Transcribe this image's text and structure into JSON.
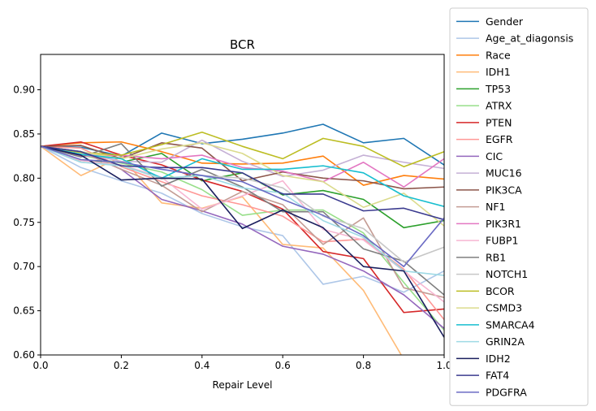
{
  "chart_data": {
    "type": "line",
    "title": "BCR",
    "xlabel": "Repair Level",
    "ylabel": "",
    "xlim": [
      0,
      1
    ],
    "ylim": [
      0.6,
      0.94
    ],
    "xticks": [
      0.0,
      0.2,
      0.4,
      0.6,
      0.8,
      1.0
    ],
    "xtick_labels": [
      "0.0",
      "0.2",
      "0.4",
      "0.6",
      "0.8",
      "1.0"
    ],
    "yticks": [
      0.6,
      0.65,
      0.7,
      0.75,
      0.8,
      0.85,
      0.9
    ],
    "ytick_labels": [
      "0.60",
      "0.65",
      "0.70",
      "0.75",
      "0.80",
      "0.85",
      "0.90"
    ],
    "grid": false,
    "legend_position": "outside right",
    "x": [
      0.0,
      0.1,
      0.2,
      0.3,
      0.4,
      0.5,
      0.6,
      0.7,
      0.8,
      0.9,
      1.0
    ],
    "series": [
      {
        "name": "Gender",
        "color": "#1f77b4",
        "values": [
          0.836,
          0.835,
          0.825,
          0.851,
          0.839,
          0.844,
          0.851,
          0.861,
          0.84,
          0.845,
          0.815
        ]
      },
      {
        "name": "Age_at_diagonsis",
        "color": "#aec7e8",
        "values": [
          0.836,
          0.812,
          0.797,
          0.783,
          0.76,
          0.745,
          0.735,
          0.68,
          0.689,
          0.671,
          0.695
        ]
      },
      {
        "name": "Race",
        "color": "#ff7f0e",
        "values": [
          0.836,
          0.84,
          0.841,
          0.83,
          0.817,
          0.816,
          0.817,
          0.825,
          0.792,
          0.803,
          0.799
        ]
      },
      {
        "name": "IDH1",
        "color": "#ffbb78",
        "values": [
          0.836,
          0.803,
          0.824,
          0.772,
          0.766,
          0.779,
          0.725,
          0.721,
          0.673,
          0.595,
          0.57
        ]
      },
      {
        "name": "TP53",
        "color": "#2ca02c",
        "values": [
          0.836,
          0.82,
          0.818,
          0.828,
          0.797,
          0.806,
          0.781,
          0.786,
          0.776,
          0.744,
          0.752
        ]
      },
      {
        "name": "ATRX",
        "color": "#98df8a",
        "values": [
          0.836,
          0.826,
          0.817,
          0.807,
          0.787,
          0.758,
          0.764,
          0.764,
          0.738,
          0.682,
          0.628
        ]
      },
      {
        "name": "PTEN",
        "color": "#d62728",
        "values": [
          0.836,
          0.841,
          0.826,
          0.815,
          0.798,
          0.785,
          0.765,
          0.717,
          0.709,
          0.648,
          0.652
        ]
      },
      {
        "name": "EGFR",
        "color": "#ff9896",
        "values": [
          0.836,
          0.834,
          0.813,
          0.796,
          0.78,
          0.77,
          0.757,
          0.728,
          0.731,
          0.697,
          0.64
        ]
      },
      {
        "name": "CIC",
        "color": "#9467bd",
        "values": [
          0.836,
          0.83,
          0.81,
          0.776,
          0.763,
          0.748,
          0.723,
          0.714,
          0.695,
          0.668,
          0.63
        ]
      },
      {
        "name": "MUC16",
        "color": "#c5b0d5",
        "values": [
          0.836,
          0.829,
          0.819,
          0.818,
          0.843,
          0.819,
          0.802,
          0.809,
          0.826,
          0.818,
          0.811
        ]
      },
      {
        "name": "PIK3CA",
        "color": "#8c564b",
        "values": [
          0.836,
          0.837,
          0.822,
          0.84,
          0.834,
          0.797,
          0.807,
          0.8,
          0.797,
          0.788,
          0.79
        ]
      },
      {
        "name": "NF1",
        "color": "#c49c94",
        "values": [
          0.836,
          0.83,
          0.81,
          0.792,
          0.762,
          0.785,
          0.77,
          0.725,
          0.755,
          0.676,
          0.665
        ]
      },
      {
        "name": "PIK3R1",
        "color": "#e377c2",
        "values": [
          0.836,
          0.825,
          0.826,
          0.822,
          0.826,
          0.812,
          0.808,
          0.796,
          0.818,
          0.79,
          0.822
        ]
      },
      {
        "name": "FUBP1",
        "color": "#f7b6d2",
        "values": [
          0.836,
          0.82,
          0.815,
          0.801,
          0.765,
          0.78,
          0.797,
          0.742,
          0.73,
          0.695,
          0.66
        ]
      },
      {
        "name": "RB1",
        "color": "#7f7f7f",
        "values": [
          0.836,
          0.824,
          0.839,
          0.791,
          0.81,
          0.79,
          0.762,
          0.762,
          0.72,
          0.706,
          0.668
        ]
      },
      {
        "name": "NOTCH1",
        "color": "#c7c7c7",
        "values": [
          0.836,
          0.818,
          0.815,
          0.799,
          0.803,
          0.8,
          0.789,
          0.757,
          0.743,
          0.705,
          0.722
        ]
      },
      {
        "name": "BCOR",
        "color": "#bcbd22",
        "values": [
          0.836,
          0.829,
          0.826,
          0.838,
          0.852,
          0.836,
          0.822,
          0.845,
          0.836,
          0.813,
          0.83
        ]
      },
      {
        "name": "CSMD3",
        "color": "#dbdb8d",
        "values": [
          0.836,
          0.83,
          0.822,
          0.833,
          0.84,
          0.828,
          0.803,
          0.796,
          0.767,
          0.783,
          0.746
        ]
      },
      {
        "name": "SMARCA4",
        "color": "#17becf",
        "values": [
          0.836,
          0.827,
          0.822,
          0.8,
          0.822,
          0.81,
          0.81,
          0.814,
          0.806,
          0.78,
          0.768
        ]
      },
      {
        "name": "GRIN2A",
        "color": "#9edae5",
        "values": [
          0.836,
          0.818,
          0.814,
          0.8,
          0.803,
          0.789,
          0.783,
          0.752,
          0.733,
          0.695,
          0.69
        ]
      },
      {
        "name": "IDH2",
        "color": "#1a1f5e",
        "values": [
          0.836,
          0.826,
          0.798,
          0.8,
          0.799,
          0.743,
          0.764,
          0.744,
          0.7,
          0.695,
          0.62
        ]
      },
      {
        "name": "FAT4",
        "color": "#3b3b8f",
        "values": [
          0.836,
          0.83,
          0.814,
          0.812,
          0.812,
          0.806,
          0.782,
          0.782,
          0.763,
          0.766,
          0.753
        ]
      },
      {
        "name": "PDGFRA",
        "color": "#6b6bc4",
        "values": [
          0.836,
          0.821,
          0.818,
          0.81,
          0.803,
          0.796,
          0.776,
          0.758,
          0.735,
          0.7,
          0.755
        ]
      }
    ]
  }
}
